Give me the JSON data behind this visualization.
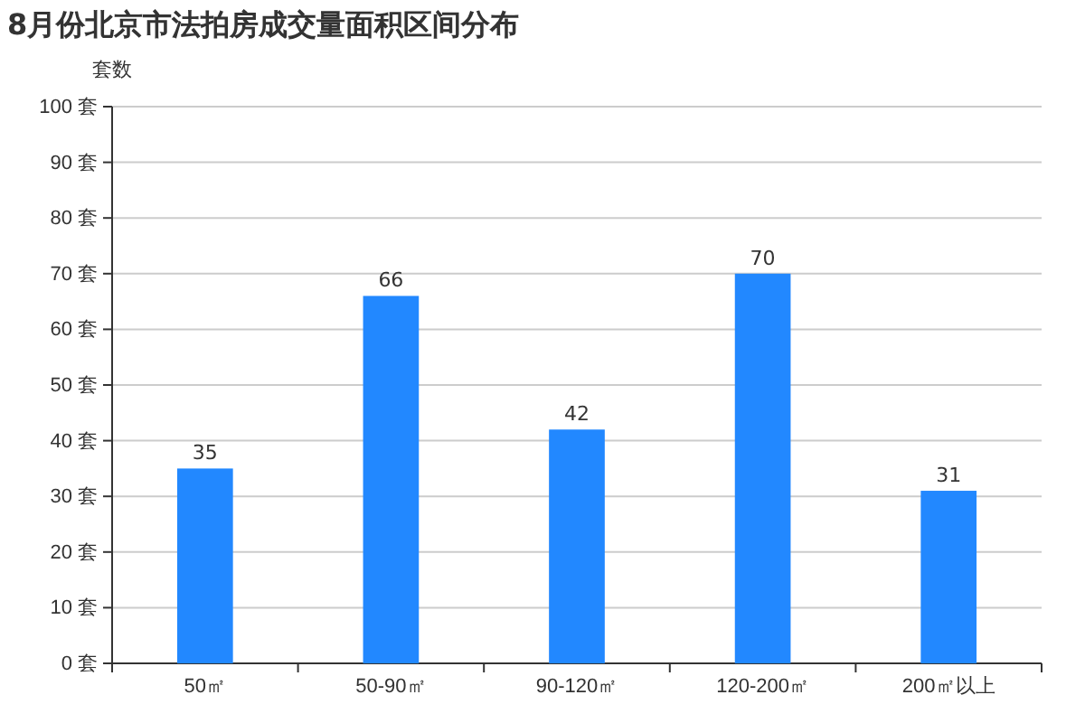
{
  "chart_data": {
    "type": "bar",
    "title": "8月份北京市法拍房成交量面积区间分布",
    "ylabel": "套数",
    "categories": [
      "50㎡",
      "50-90㎡",
      "90-120㎡",
      "120-200㎡",
      "200㎡以上"
    ],
    "values": [
      35,
      66,
      42,
      70,
      31
    ],
    "color": "#2288ff",
    "data_labels": true,
    "grid": "y",
    "ylim": [
      0,
      100
    ],
    "yticks": [
      {
        "value": 0,
        "label": "0 套"
      },
      {
        "value": 10,
        "label": "10 套"
      },
      {
        "value": 20,
        "label": "20 套"
      },
      {
        "value": 30,
        "label": "30 套"
      },
      {
        "value": 40,
        "label": "40 套"
      },
      {
        "value": 50,
        "label": "50 套"
      },
      {
        "value": 60,
        "label": "60 套"
      },
      {
        "value": 70,
        "label": "70 套"
      },
      {
        "value": 80,
        "label": "80 套"
      },
      {
        "value": 90,
        "label": "90 套"
      },
      {
        "value": 100,
        "label": "100 套"
      }
    ]
  }
}
